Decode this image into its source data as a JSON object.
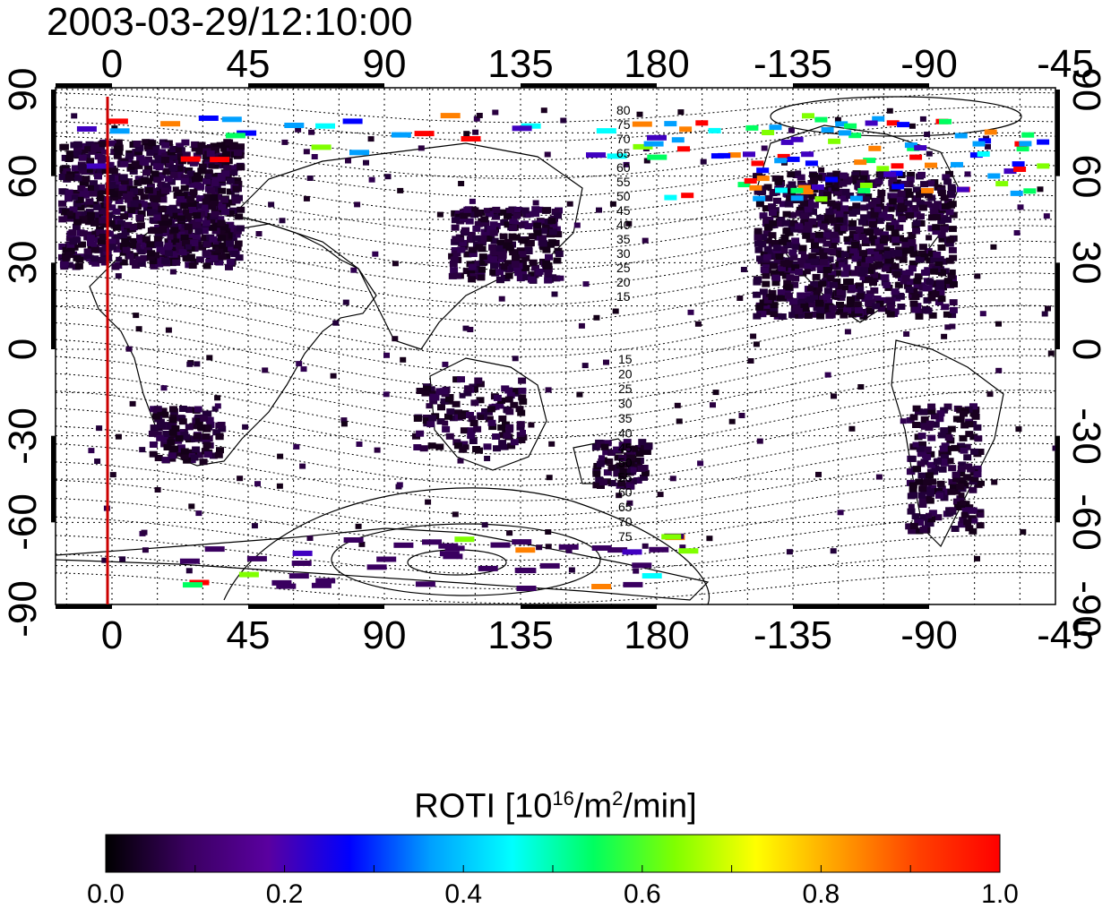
{
  "title": "2003-03-29/12:10:00",
  "map": {
    "top_lon_ticks": [
      "0",
      "45",
      "90",
      "135",
      "180",
      "-135",
      "-90",
      "-45"
    ],
    "bottom_lon_ticks": [
      "0",
      "45",
      "90",
      "135",
      "180",
      "-135",
      "-90",
      "-45"
    ],
    "left_lat_ticks": [
      "90",
      "60",
      "30",
      "0",
      "-30",
      "-60",
      "-90"
    ],
    "right_lat_ticks": [
      "90",
      "60",
      "30",
      "0",
      "-30",
      "-60",
      "-90"
    ],
    "contour_labels_north": [
      "80",
      "75",
      "70",
      "65",
      "60",
      "55",
      "50",
      "45",
      "40",
      "35",
      "30",
      "25",
      "20",
      "15"
    ],
    "contour_labels_south": [
      "15",
      "20",
      "25",
      "30",
      "35",
      "40",
      "45",
      "50",
      "55",
      "60",
      "65",
      "70",
      "75"
    ],
    "meridian_marker_color": "#cc0000"
  },
  "colorbar": {
    "title_prefix": "ROTI  [10",
    "title_sup1": "16",
    "title_mid": "/m",
    "title_sup2": "2",
    "title_suffix": "/min]",
    "ticks": [
      "0.0",
      "0.2",
      "0.4",
      "0.6",
      "0.8",
      "1.0"
    ],
    "range": [
      0.0,
      1.0
    ],
    "colormap": [
      "#000000",
      "#3a0060",
      "#5a00a0",
      "#0000ff",
      "#00a0ff",
      "#00ffff",
      "#00ff60",
      "#80ff00",
      "#ffff00",
      "#ffa000",
      "#ff4000",
      "#ff0000"
    ]
  }
}
